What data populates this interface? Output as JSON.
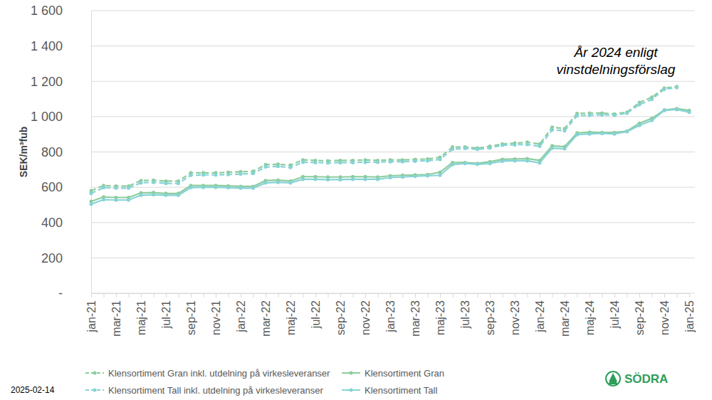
{
  "chart_data": {
    "type": "line",
    "y_label": "SEK/m³fub",
    "annotation": [
      "År 2024 enligt",
      "vinstdelningsförslag"
    ],
    "date": "2025-02-14",
    "logo": "SÖDRA",
    "categories": [
      "jan-21",
      null,
      "mar-21",
      null,
      "maj-21",
      null,
      "jul-21",
      null,
      "sep-21",
      null,
      "nov-21",
      null,
      "jan-22",
      null,
      "mar-22",
      null,
      "maj-22",
      null,
      "jul-22",
      null,
      "sep-22",
      null,
      "nov-22",
      null,
      "jan-23",
      null,
      "mar-23",
      null,
      "maj-23",
      null,
      "jul-23",
      null,
      "sep-23",
      null,
      "nov-23",
      null,
      "jan-24",
      null,
      "mar-24",
      null,
      "maj-24",
      null,
      "jul-24",
      null,
      "sep-24",
      null,
      "nov-24",
      null,
      "jan-25"
    ],
    "series": [
      {
        "name": "Klensortiment Gran inkl. utdelning på virkesleveranser",
        "color": "#8ccc9e",
        "line_style": "dashed",
        "marker": "circle",
        "values": [
          580,
          610,
          607,
          607,
          638,
          640,
          635,
          635,
          682,
          682,
          682,
          685,
          688,
          690,
          728,
          730,
          725,
          755,
          752,
          750,
          752,
          752,
          755,
          752,
          755,
          755,
          758,
          760,
          770,
          828,
          828,
          822,
          832,
          845,
          850,
          855,
          845,
          940,
          932,
          1018,
          1020,
          1020,
          1015,
          1025,
          1080,
          1110,
          1162,
          1170,
          null
        ]
      },
      {
        "name": "Klensortiment Gran",
        "color": "#8ccc9e",
        "line_style": "solid",
        "marker": "circle",
        "values": [
          520,
          545,
          542,
          542,
          568,
          570,
          565,
          565,
          610,
          610,
          610,
          608,
          605,
          605,
          638,
          640,
          635,
          660,
          660,
          658,
          658,
          660,
          660,
          658,
          665,
          668,
          670,
          672,
          685,
          740,
          740,
          735,
          745,
          758,
          760,
          762,
          752,
          835,
          830,
          908,
          912,
          910,
          910,
          918,
          962,
          990,
          1038,
          1045,
          1035
        ]
      },
      {
        "name": "Klensortiment Tall inkl. utdelning på virkesleveranser",
        "color": "#86d3d6",
        "line_style": "dashed",
        "marker": "circle",
        "values": [
          565,
          598,
          595,
          595,
          625,
          628,
          622,
          622,
          668,
          670,
          670,
          672,
          675,
          678,
          715,
          718,
          712,
          742,
          740,
          738,
          740,
          740,
          742,
          742,
          745,
          745,
          748,
          750,
          758,
          815,
          820,
          815,
          822,
          838,
          840,
          842,
          832,
          925,
          920,
          1005,
          1008,
          1010,
          1008,
          1020,
          1068,
          1098,
          1155,
          1165,
          null
        ]
      },
      {
        "name": "Klensortiment Tall",
        "color": "#86d3d6",
        "line_style": "solid",
        "marker": "circle",
        "values": [
          505,
          530,
          528,
          528,
          555,
          558,
          555,
          555,
          598,
          600,
          600,
          598,
          595,
          595,
          625,
          628,
          625,
          645,
          645,
          643,
          643,
          645,
          645,
          645,
          655,
          658,
          662,
          665,
          668,
          728,
          735,
          730,
          735,
          748,
          750,
          750,
          738,
          822,
          818,
          898,
          902,
          905,
          902,
          915,
          950,
          978,
          1035,
          1040,
          1025
        ]
      }
    ],
    "ylim": [
      0,
      1600
    ],
    "yticks": [
      {
        "value": 0,
        "label": "-"
      },
      200,
      400,
      600,
      800,
      {
        "value": 1000,
        "label": "1 000"
      },
      {
        "value": 1200,
        "label": "1 200"
      },
      {
        "value": 1400,
        "label": "1 400"
      },
      {
        "value": 1600,
        "label": "1 600"
      }
    ],
    "grid": true,
    "legend": "bottom"
  }
}
